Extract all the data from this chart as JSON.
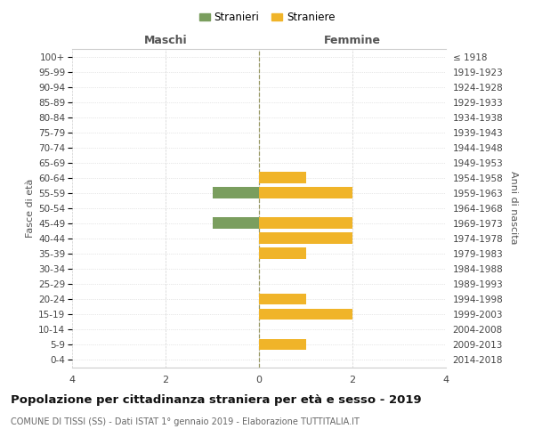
{
  "age_groups": [
    "100+",
    "95-99",
    "90-94",
    "85-89",
    "80-84",
    "75-79",
    "70-74",
    "65-69",
    "60-64",
    "55-59",
    "50-54",
    "45-49",
    "40-44",
    "35-39",
    "30-34",
    "25-29",
    "20-24",
    "15-19",
    "10-14",
    "5-9",
    "0-4"
  ],
  "birth_years": [
    "≤ 1918",
    "1919-1923",
    "1924-1928",
    "1929-1933",
    "1934-1938",
    "1939-1943",
    "1944-1948",
    "1949-1953",
    "1954-1958",
    "1959-1963",
    "1964-1968",
    "1969-1973",
    "1974-1978",
    "1979-1983",
    "1984-1988",
    "1989-1993",
    "1994-1998",
    "1999-2003",
    "2004-2008",
    "2009-2013",
    "2014-2018"
  ],
  "males": [
    0,
    0,
    0,
    0,
    0,
    0,
    0,
    0,
    0,
    1,
    0,
    1,
    0,
    0,
    0,
    0,
    0,
    0,
    0,
    0,
    0
  ],
  "females": [
    0,
    0,
    0,
    0,
    0,
    0,
    0,
    0,
    1,
    2,
    0,
    2,
    2,
    1,
    0,
    0,
    1,
    2,
    0,
    1,
    0
  ],
  "male_color": "#7A9E5E",
  "female_color": "#F0B429",
  "title_main": "Popolazione per cittadinanza straniera per età e sesso - 2019",
  "title_sub": "COMUNE DI TISSI (SS) - Dati ISTAT 1° gennaio 2019 - Elaborazione TUTTITALIA.IT",
  "legend_male": "Stranieri",
  "legend_female": "Straniere",
  "xlabel_left": "Maschi",
  "xlabel_right": "Femmine",
  "ylabel_left": "Fasce di età",
  "ylabel_right": "Anni di nascita",
  "xlim": 4,
  "bg_color": "#ffffff",
  "grid_color": "#d0d0d0",
  "bar_height": 0.75
}
